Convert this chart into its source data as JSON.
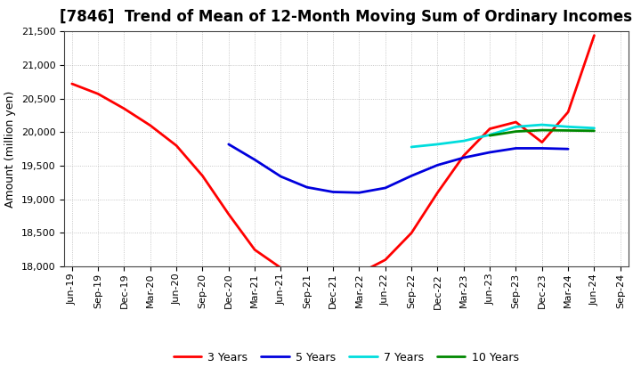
{
  "title": "[7846]  Trend of Mean of 12-Month Moving Sum of Ordinary Incomes",
  "ylabel": "Amount (million yen)",
  "ylim": [
    18000,
    21500
  ],
  "yticks": [
    18000,
    18500,
    19000,
    19500,
    20000,
    20500,
    21000,
    21500
  ],
  "x_labels": [
    "Jun-19",
    "Sep-19",
    "Dec-19",
    "Mar-20",
    "Jun-20",
    "Sep-20",
    "Dec-20",
    "Mar-21",
    "Jun-21",
    "Sep-21",
    "Dec-21",
    "Mar-22",
    "Jun-22",
    "Sep-22",
    "Dec-22",
    "Mar-23",
    "Jun-23",
    "Sep-23",
    "Dec-23",
    "Mar-24",
    "Jun-24",
    "Sep-24"
  ],
  "series_3y": {
    "label": "3 Years",
    "color": "#ff0000"
  },
  "series_5y": {
    "label": "5 Years",
    "color": "#0000dd"
  },
  "series_7y": {
    "label": "7 Years",
    "color": "#00dddd"
  },
  "series_10y": {
    "label": "10 Years",
    "color": "#008800"
  },
  "background_color": "#ffffff",
  "grid_color": "#999999",
  "title_fontsize": 12,
  "label_fontsize": 9,
  "tick_fontsize": 8
}
